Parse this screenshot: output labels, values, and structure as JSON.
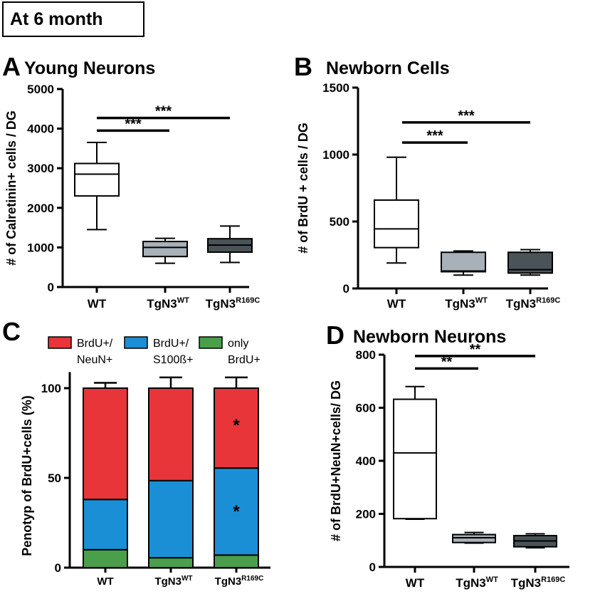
{
  "header": {
    "title": "At 6 month"
  },
  "panels": {
    "A": {
      "letter": "A",
      "title": "Young Neurons"
    },
    "B": {
      "letter": "B",
      "title": "Newborn Cells"
    },
    "C": {
      "letter": "C",
      "title": ""
    },
    "D": {
      "letter": "D",
      "title": "Newborn Neurons"
    }
  },
  "colors": {
    "wt_box": "#ffffff",
    "tgn3wt_box": "#a8b0b8",
    "tgn3r169c_box": "#4a5458",
    "neun": "#e8353a",
    "s100b": "#1a8fd6",
    "only_brdu": "#4aa04a"
  },
  "chart_data": [
    {
      "panel": "A",
      "type": "box",
      "ylabel": "# of Calretinin+ cells / DG",
      "ylim": [
        0,
        5000
      ],
      "yticks": [
        "0",
        "1000",
        "2000",
        "3000",
        "4000",
        "5000"
      ],
      "categories": [
        "WT",
        "TgN3WT",
        "TgN3R169C"
      ],
      "boxes": [
        {
          "min": 1450,
          "q1": 2300,
          "median": 2850,
          "q3": 3120,
          "max": 3650
        },
        {
          "min": 600,
          "q1": 770,
          "median": 1000,
          "q3": 1150,
          "max": 1230
        },
        {
          "min": 620,
          "q1": 880,
          "median": 1060,
          "q3": 1220,
          "max": 1540
        }
      ],
      "significance": [
        {
          "from": 0,
          "to": 1,
          "label": "***",
          "y": 3950
        },
        {
          "from": 0,
          "to": 2,
          "label": "***",
          "y": 4270
        }
      ]
    },
    {
      "panel": "B",
      "type": "box",
      "ylabel": "# of BrdU + cells / DG",
      "ylim": [
        0,
        1500
      ],
      "yticks": [
        "0",
        "500",
        "1000",
        "1500"
      ],
      "categories": [
        "WT",
        "TgN3WT",
        "TgN3R169C"
      ],
      "boxes": [
        {
          "min": 190,
          "q1": 305,
          "median": 445,
          "q3": 660,
          "max": 980
        },
        {
          "min": 100,
          "q1": 125,
          "median": 130,
          "q3": 270,
          "max": 280
        },
        {
          "min": 100,
          "q1": 115,
          "median": 140,
          "q3": 270,
          "max": 290
        }
      ],
      "significance": [
        {
          "from": 0,
          "to": 1,
          "label": "***",
          "y": 1090
        },
        {
          "from": 0,
          "to": 2,
          "label": "***",
          "y": 1240
        }
      ]
    },
    {
      "panel": "C",
      "type": "bar",
      "stacked": true,
      "ylabel": "Penotyp of BrdU+cells (%)",
      "ylim": [
        0,
        110
      ],
      "yticks": [
        "0",
        "50",
        "100"
      ],
      "categories": [
        "WT",
        "TgN3WT",
        "TgN3R169C"
      ],
      "legend": [
        {
          "line1": "BrdU+/",
          "line2": "NeuN+"
        },
        {
          "line1": "BrdU+/",
          "line2": "S100ß+"
        },
        {
          "line1": "only",
          "line2": "BrdU+"
        }
      ],
      "series": [
        {
          "name": "only BrdU+",
          "values": [
            10,
            5.5,
            7
          ],
          "err": [
            3.5,
            3.5,
            6.5
          ]
        },
        {
          "name": "BrdU+/S100ß+",
          "values": [
            28,
            43,
            48.5
          ],
          "err": [
            3.5,
            6.5,
            5.5
          ]
        },
        {
          "name": "BrdU+/NeuN+",
          "values": [
            62,
            51.5,
            44.5
          ],
          "err": [
            3,
            6,
            6
          ]
        }
      ],
      "annotations": [
        {
          "category": 2,
          "y": 81,
          "label": "*"
        },
        {
          "category": 2,
          "y": 33,
          "label": "*"
        }
      ]
    },
    {
      "panel": "D",
      "type": "box",
      "ylabel": "# of BrdU+NeuN+cells/ DG",
      "ylim": [
        0,
        800
      ],
      "yticks": [
        "0",
        "200",
        "400",
        "600",
        "800"
      ],
      "categories": [
        "WT",
        "TgN3WT",
        "TgN3R169C"
      ],
      "boxes": [
        {
          "min": 180,
          "q1": 182,
          "median": 430,
          "q3": 632,
          "max": 680
        },
        {
          "min": 90,
          "q1": 92,
          "median": 110,
          "q3": 122,
          "max": 130
        },
        {
          "min": 72,
          "q1": 76,
          "median": 98,
          "q3": 118,
          "max": 125
        }
      ],
      "significance": [
        {
          "from": 0,
          "to": 1,
          "label": "**",
          "y": 748
        },
        {
          "from": 0,
          "to": 2,
          "label": "**",
          "y": 795
        }
      ]
    }
  ]
}
